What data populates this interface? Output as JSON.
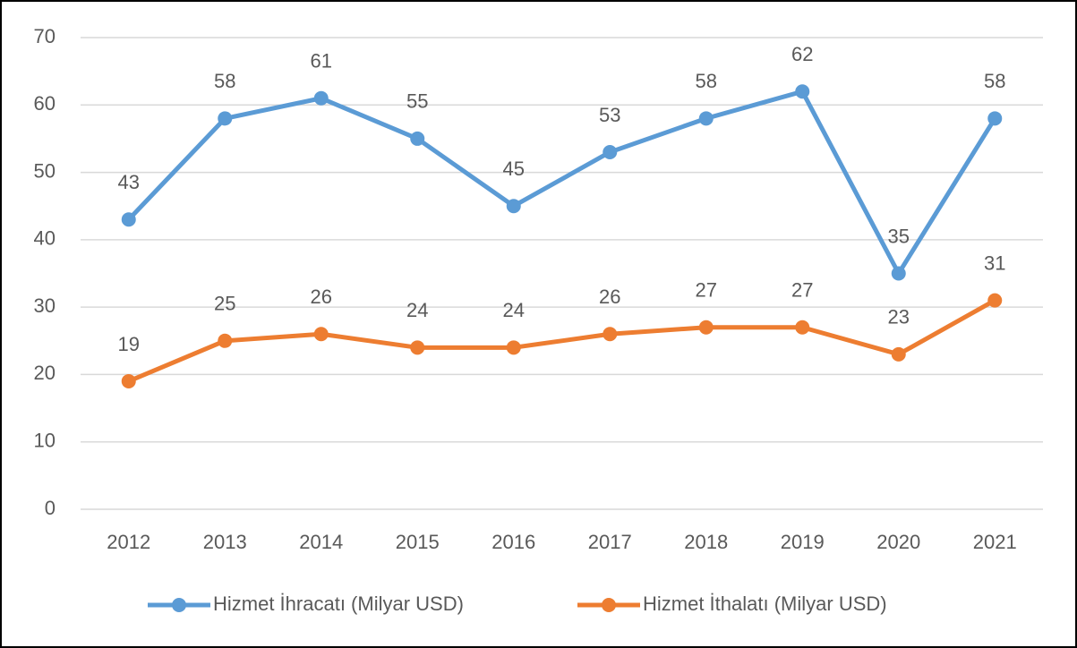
{
  "chart_data": {
    "type": "line",
    "categories": [
      "2012",
      "2013",
      "2014",
      "2015",
      "2016",
      "2017",
      "2018",
      "2019",
      "2020",
      "2021"
    ],
    "series": [
      {
        "name": "Hizmet İhracatı (Milyar USD)",
        "color": "#5b9bd5",
        "values": [
          43,
          58,
          61,
          55,
          45,
          53,
          58,
          62,
          35,
          58
        ]
      },
      {
        "name": "Hizmet İthalatı (Milyar USD)",
        "color": "#ed7d31",
        "values": [
          19,
          25,
          26,
          24,
          24,
          26,
          27,
          27,
          23,
          31
        ]
      }
    ],
    "ylim": [
      0,
      70
    ],
    "yticks": [
      0,
      10,
      20,
      30,
      40,
      50,
      60,
      70
    ],
    "grid": true,
    "legend": "bottom"
  }
}
